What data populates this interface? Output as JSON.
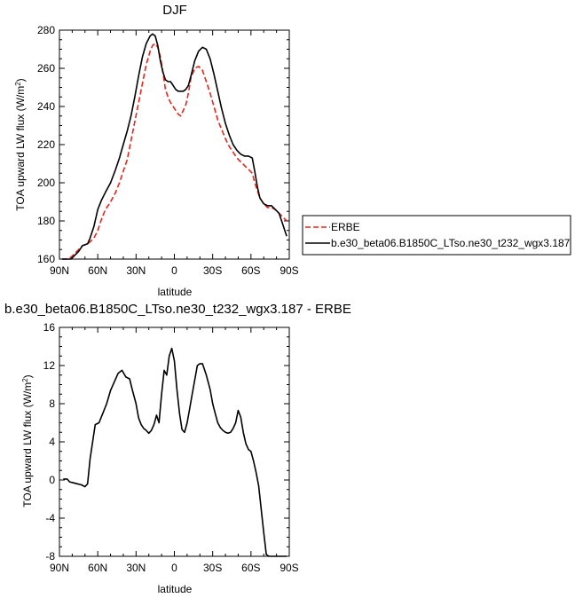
{
  "chart_data": [
    {
      "type": "line",
      "title": "DJF",
      "xlabel": "latitude",
      "ylabel": "TOA upward LW flux (W/m²)",
      "ylabel_main": "TOA upward LW flux (W/m",
      "ylabel_sup": "2",
      "ylabel_tail": ")",
      "xlim": [
        90,
        -90
      ],
      "ylim": [
        160,
        280
      ],
      "x_ticks": [
        90,
        60,
        30,
        0,
        -30,
        -60,
        -90
      ],
      "x_tick_labels": [
        "90N",
        "60N",
        "30N",
        "0",
        "30S",
        "60S",
        "90S"
      ],
      "y_ticks": [
        160,
        180,
        200,
        220,
        240,
        260,
        280
      ],
      "y_tick_labels": [
        "160",
        "180",
        "200",
        "220",
        "240",
        "260",
        "280"
      ],
      "legend_position": "right",
      "series": [
        {
          "name": "ERBE",
          "color": "#e8241c",
          "dash": "dashed",
          "x": [
            88,
            84,
            81,
            78,
            75,
            72,
            68,
            66,
            63,
            60,
            57,
            54,
            50,
            46,
            43,
            40,
            37,
            34,
            31,
            28,
            25,
            22,
            19,
            17,
            15,
            13,
            11,
            9,
            7,
            5,
            3,
            1,
            -1,
            -3,
            -5,
            -7,
            -9,
            -11,
            -13,
            -16,
            -19,
            -22,
            -25,
            -28,
            -31,
            -34,
            -37,
            -40,
            -43,
            -46,
            -49,
            -52,
            -55,
            -58,
            -61,
            -63,
            -65,
            -67,
            -70,
            -73,
            -76,
            -79,
            -82,
            -85,
            -88
          ],
          "y": [
            160,
            160,
            161,
            163,
            165,
            167,
            168,
            169,
            171,
            175,
            181,
            186,
            190,
            195,
            200,
            206,
            212,
            222,
            232,
            242,
            252,
            262,
            269,
            272,
            273,
            271,
            266,
            258,
            249,
            245,
            242,
            240,
            238,
            236,
            235,
            238,
            241,
            247,
            255,
            260,
            261,
            259,
            253,
            247,
            240,
            233,
            228,
            223,
            219,
            216,
            213,
            211,
            209,
            207,
            205,
            200,
            196,
            192,
            189,
            187,
            187,
            186,
            184,
            182,
            180
          ]
        },
        {
          "name": "b.e30_beta06.B1850C_LTso.ne30_t232_wgx3.187",
          "color": "#000000",
          "dash": "solid",
          "x": [
            88,
            84,
            81,
            78,
            75,
            72,
            68,
            66,
            63,
            60,
            57,
            54,
            50,
            46,
            43,
            40,
            37,
            34,
            31,
            28,
            25,
            22,
            19,
            17,
            15,
            13,
            11,
            9,
            7,
            5,
            3,
            1,
            -1,
            -3,
            -5,
            -7,
            -9,
            -11,
            -13,
            -16,
            -19,
            -22,
            -25,
            -28,
            -31,
            -34,
            -37,
            -40,
            -43,
            -46,
            -49,
            -52,
            -55,
            -58,
            -61,
            -63,
            -65,
            -67,
            -70,
            -73,
            -76,
            -79,
            -82,
            -85,
            -88
          ],
          "y": [
            160,
            160,
            160,
            162,
            164,
            167,
            168,
            171,
            177,
            186,
            191,
            195,
            200,
            207,
            213,
            220,
            227,
            235,
            245,
            256,
            266,
            273,
            277,
            278,
            277,
            272,
            264,
            258,
            254,
            253,
            253,
            251,
            249,
            248,
            248,
            248,
            249,
            251,
            256,
            264,
            269,
            271,
            270,
            265,
            257,
            248,
            239,
            231,
            225,
            220,
            217,
            215,
            214,
            214,
            213,
            206,
            198,
            192,
            189,
            188,
            188,
            186,
            184,
            178,
            172
          ]
        }
      ]
    },
    {
      "type": "line",
      "title": "b.e30_beta06.B1850C_LTso.ne30_t232_wgx3.187 - ERBE",
      "xlabel": "latitude",
      "ylabel": "TOA upward LW flux (W/m²)",
      "ylabel_main": "TOA upward LW flux (W/m",
      "ylabel_sup": "2",
      "ylabel_tail": ")",
      "xlim": [
        90,
        -90
      ],
      "ylim": [
        -8,
        16
      ],
      "x_ticks": [
        90,
        60,
        30,
        0,
        -30,
        -60,
        -90
      ],
      "x_tick_labels": [
        "90N",
        "60N",
        "30N",
        "0",
        "30S",
        "60S",
        "90S"
      ],
      "y_ticks": [
        -8,
        -4,
        0,
        4,
        8,
        12,
        16
      ],
      "y_tick_labels": [
        "-8",
        "-4",
        "0",
        "4",
        "8",
        "12",
        "16"
      ],
      "series": [
        {
          "color": "#000000",
          "dash": "solid",
          "x": [
            87,
            84,
            82,
            79,
            76,
            73,
            70,
            68,
            66,
            64,
            62,
            59,
            56,
            53,
            50,
            47,
            44,
            41,
            38,
            35,
            33,
            30,
            28,
            26,
            24,
            22,
            20,
            18,
            16,
            14,
            12,
            10,
            8,
            6,
            4,
            2,
            0,
            -2,
            -4,
            -6,
            -8,
            -10,
            -12,
            -14,
            -16,
            -18,
            -20,
            -22,
            -25,
            -28,
            -30,
            -32,
            -34,
            -36,
            -38,
            -40,
            -42,
            -44,
            -46,
            -48,
            -50,
            -52,
            -54,
            -56,
            -58,
            -60,
            -62,
            -64,
            -66,
            -68,
            -70,
            -72,
            -74,
            -76,
            -78,
            -80,
            -82,
            -84,
            -86,
            -88
          ],
          "y": [
            0.1,
            0.1,
            -0.2,
            -0.3,
            -0.4,
            -0.5,
            -0.7,
            -0.4,
            2.2,
            4.0,
            5.8,
            6.0,
            7.0,
            8.0,
            9.4,
            10.3,
            11.2,
            11.5,
            10.8,
            10.6,
            9.5,
            8.0,
            6.5,
            5.8,
            5.4,
            5.2,
            4.9,
            5.2,
            5.8,
            6.8,
            6.0,
            9.0,
            11.5,
            11.0,
            13.0,
            13.8,
            12.5,
            9.5,
            7.0,
            5.3,
            5.0,
            6.0,
            7.5,
            9.0,
            10.5,
            12.0,
            12.2,
            12.2,
            11.0,
            9.5,
            8.0,
            7.0,
            6.0,
            5.5,
            5.2,
            5.0,
            4.9,
            5.0,
            5.4,
            6.0,
            7.3,
            6.6,
            5.0,
            3.8,
            3.2,
            3.0,
            2.0,
            0.8,
            -0.6,
            -3.0,
            -5.5,
            -7.8,
            -8.0,
            -8.0,
            -8.0,
            -8.0,
            -8.0,
            -8.0,
            -8.0,
            -8.0
          ]
        }
      ]
    }
  ]
}
